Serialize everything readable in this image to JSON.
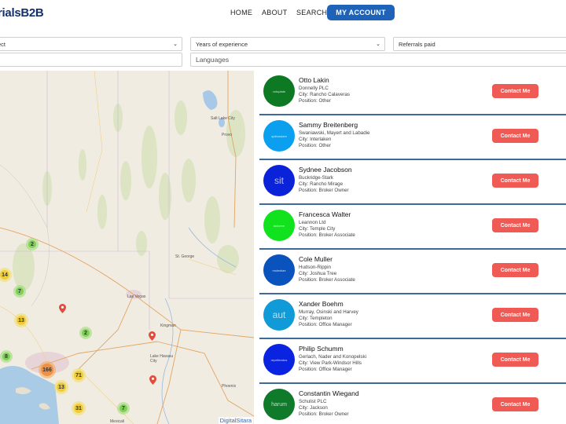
{
  "header": {
    "logo": "rialsB2B",
    "nav": {
      "home": "HOME",
      "about": "ABOUT",
      "search": "SEARCH",
      "account": "MY ACCOUNT"
    }
  },
  "filters": {
    "select_label": "ect",
    "years": "Years of experience",
    "referrals": "Referrals paid",
    "languages": "Languages"
  },
  "map": {
    "attribution": "DigitalSitara",
    "clusters": [
      {
        "count": "2",
        "color": "green"
      },
      {
        "count": "14",
        "color": "yellow"
      },
      {
        "count": "7",
        "color": "green"
      },
      {
        "count": "13",
        "color": "yellow"
      },
      {
        "count": "2",
        "color": "green"
      },
      {
        "count": "8",
        "color": "green"
      },
      {
        "count": "166",
        "color": "orange"
      },
      {
        "count": "71",
        "color": "yellow"
      },
      {
        "count": "13",
        "color": "yellow"
      },
      {
        "count": "31",
        "color": "yellow"
      },
      {
        "count": "7",
        "color": "green"
      }
    ],
    "cities": [
      "Salt Lake City",
      "Provo",
      "St. George",
      "Las Vegas",
      "Kingman",
      "Lake Havasu City",
      "Phoenix",
      "Mexicali"
    ]
  },
  "contact_label": "Contact Me",
  "agents": [
    {
      "name": "Otto Lakin",
      "company": "Donnelly PLC",
      "city": "City: Rancho Calaveras",
      "position": "Position: Other",
      "avatar_text": "voluptate",
      "color": "#0d7a23"
    },
    {
      "name": "Sammy Breitenberg",
      "company": "Swaniawski, Mayert and Labadie",
      "city": "City: Interlaken",
      "position": "Position: Other",
      "avatar_text": "quibusdam",
      "color": "#0aa0ef"
    },
    {
      "name": "Sydnee Jacobson",
      "company": "Buckridge-Stark",
      "city": "City: Rancho Mirage",
      "position": "Position: Broker Owner",
      "avatar_text": "sit",
      "color": "#0a23d8"
    },
    {
      "name": "Francesca Walter",
      "company": "Leannon Ltd",
      "city": "City: Temple City",
      "position": "Position: Broker Associate",
      "avatar_text": "dolorem",
      "color": "#10e31d"
    },
    {
      "name": "Cole Muller",
      "company": "Hudson-Rippin",
      "city": "City: Joshua Tree",
      "position": "Position: Broker Associate",
      "avatar_text": "molestiae",
      "color": "#0a53bd"
    },
    {
      "name": "Xander Boehm",
      "company": "Murray, Osinski and Harvey",
      "city": "City: Templeton",
      "position": "Position: Office Manager",
      "avatar_text": "aut",
      "color": "#119ad8"
    },
    {
      "name": "Philip Schumm",
      "company": "Gerlach, Nader and Konopelski",
      "city": "City: View Park-Windsor Hills",
      "position": "Position: Office Manager",
      "avatar_text": "repellendus",
      "color": "#0a23e0"
    },
    {
      "name": "Constantin Wiegand",
      "company": "Schulist PLC",
      "city": "City: Jackson",
      "position": "Position: Broker Owner",
      "avatar_text": "harum",
      "color": "#0f7a2a"
    }
  ]
}
